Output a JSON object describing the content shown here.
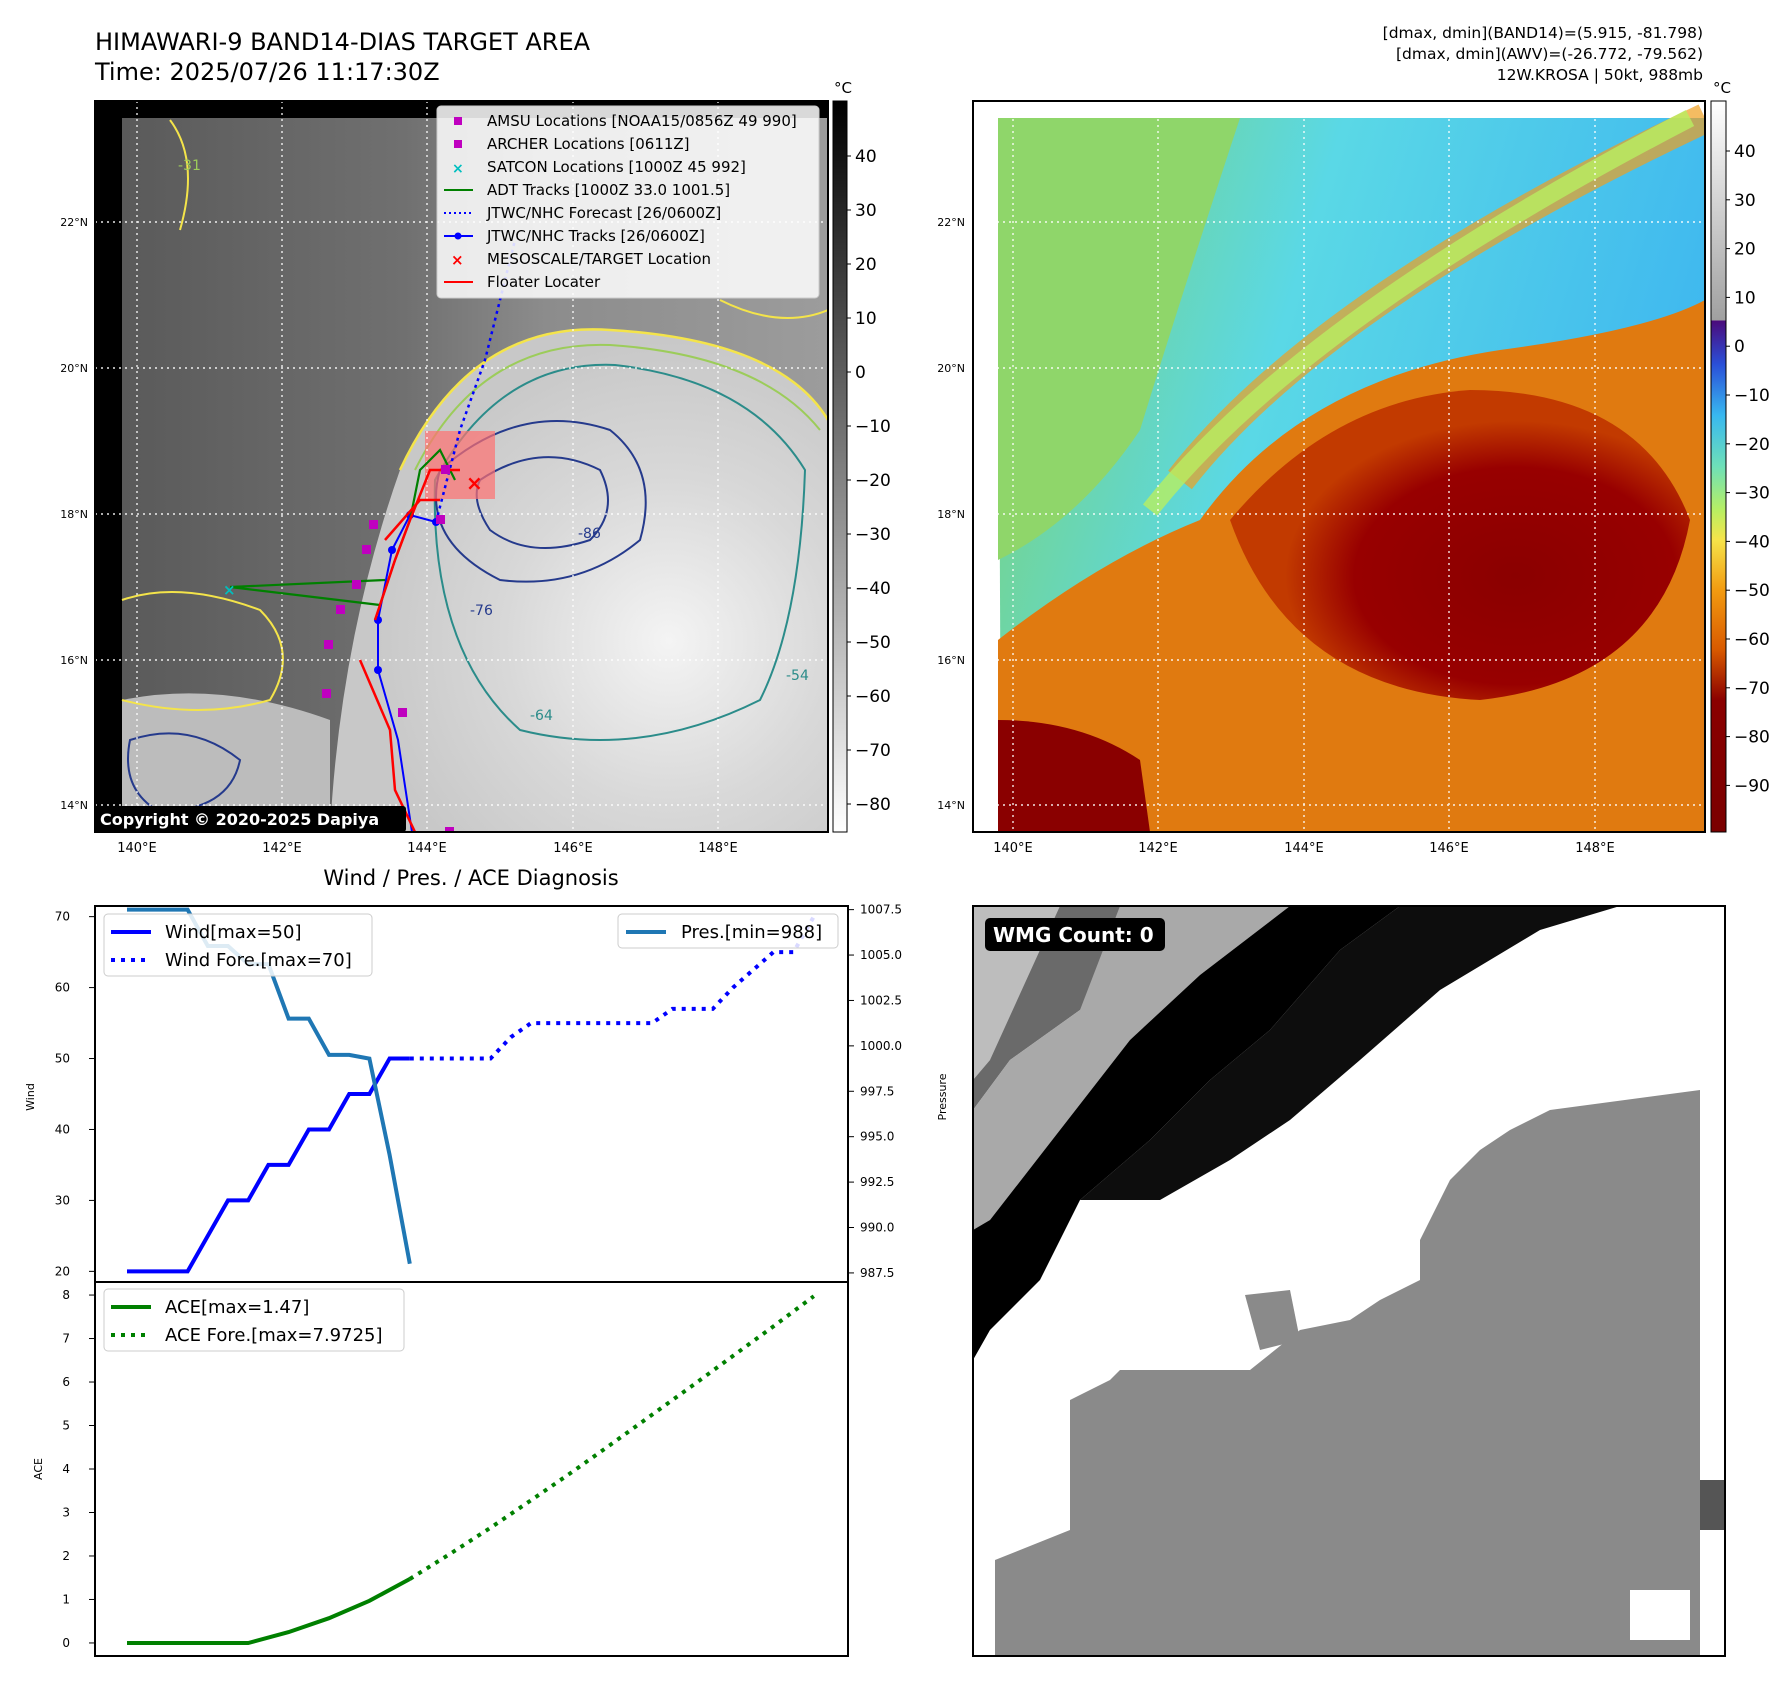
{
  "header": {
    "title": "HIMAWARI-9 BAND14-DIAS TARGET AREA",
    "time": "Time: 2025/07/26 11:17:30Z",
    "stats_band14": "[dmax, dmin](BAND14)=(5.915, -81.798)",
    "stats_awv": "[dmax, dmin](AWV)=(-26.772, -79.562)",
    "storm": "12W.KROSA | 50kt, 988mb"
  },
  "map": {
    "lat_labels": [
      "22°N",
      "20°N",
      "18°N",
      "16°N",
      "14°N"
    ],
    "lon_labels": [
      "140°E",
      "142°E",
      "144°E",
      "146°E",
      "148°E"
    ],
    "copyright": "Copyright © 2020-2025 Dapiya",
    "contour_labels": [
      "-31",
      "-54",
      "-64",
      "-76",
      "-86"
    ],
    "legend": [
      {
        "label": "AMSU Locations [NOAA15/0856Z 49 990]",
        "marker": "square",
        "color": "#bf00bf"
      },
      {
        "label": "ARCHER Locations [0611Z]",
        "marker": "square",
        "color": "#bf00bf"
      },
      {
        "label": "SATCON Locations [1000Z 45 992]",
        "marker": "x",
        "color": "#00bfbf"
      },
      {
        "label": "ADT Tracks [1000Z 33.0 1001.5]",
        "marker": "line",
        "color": "#008000"
      },
      {
        "label": "JTWC/NHC Forecast [26/0600Z]",
        "marker": "dotted",
        "color": "#0000ff"
      },
      {
        "label": "JTWC/NHC Tracks [26/0600Z]",
        "marker": "line-dot",
        "color": "#0000ff"
      },
      {
        "label": "MESOSCALE/TARGET Location",
        "marker": "x",
        "color": "#ff0000"
      },
      {
        "label": "Floater Locater",
        "marker": "line",
        "color": "#ff0000"
      }
    ]
  },
  "colorbar_gray": {
    "unit": "°C",
    "ticks": [
      "40",
      "30",
      "20",
      "10",
      "0",
      "−10",
      "−20",
      "−30",
      "−40",
      "−50",
      "−60",
      "−70",
      "−80"
    ]
  },
  "colorbar_color": {
    "unit": "°C",
    "ticks": [
      "40",
      "30",
      "20",
      "10",
      "0",
      "−10",
      "−20",
      "−30",
      "−40",
      "−50",
      "−60",
      "−70",
      "−80",
      "−90"
    ]
  },
  "chart_data": [
    {
      "type": "line",
      "title": "Wind / Pres. / ACE Diagnosis",
      "ylabel": "Wind",
      "ylim": [
        18.5,
        71.5
      ],
      "yticks": [
        20,
        30,
        40,
        50,
        60,
        70
      ],
      "series": [
        {
          "name": "Wind[max=50]",
          "color": "#0000ff",
          "style": "solid",
          "x": [
            0,
            3,
            5,
            6,
            7,
            8,
            9,
            10,
            11,
            12,
            13,
            14
          ],
          "values": [
            20,
            20,
            30,
            30,
            35,
            35,
            40,
            40,
            45,
            45,
            50,
            50
          ]
        },
        {
          "name": "Wind Fore.[max=70]",
          "color": "#0000ff",
          "style": "dotted",
          "x": [
            14,
            18,
            19,
            20,
            26,
            27,
            29,
            30,
            32,
            33,
            34
          ],
          "values": [
            50,
            50,
            53,
            55,
            55,
            57,
            57,
            60,
            65,
            65,
            70
          ]
        }
      ]
    },
    {
      "type": "line",
      "ylabel": "Pressure",
      "ylim": [
        987,
        1007.7
      ],
      "yticks": [
        "1007.5",
        "1005.0",
        "1002.5",
        "1000.0",
        "997.5",
        "995.0",
        "992.5",
        "990.0",
        "987.5"
      ],
      "series": [
        {
          "name": "Pres.[min=988]",
          "color": "#1f77b4",
          "style": "solid",
          "x": [
            0,
            3,
            4,
            5,
            6,
            7,
            8,
            9,
            10,
            11,
            12,
            13,
            14
          ],
          "values": [
            1007.5,
            1007.5,
            1005.5,
            1005.5,
            1004.5,
            1004.5,
            1001.5,
            1001.5,
            999.5,
            999.5,
            999.3,
            994,
            988
          ]
        }
      ]
    },
    {
      "type": "line",
      "ylabel": "ACE",
      "ylim": [
        -0.3,
        8.3
      ],
      "yticks": [
        0,
        1,
        2,
        3,
        4,
        5,
        6,
        7,
        8
      ],
      "series": [
        {
          "name": "ACE[max=1.47]",
          "color": "#008000",
          "style": "solid",
          "x": [
            0,
            2,
            4,
            6,
            8,
            10,
            12,
            14
          ],
          "values": [
            0,
            0,
            0,
            0,
            0.25,
            0.57,
            0.97,
            1.47
          ]
        },
        {
          "name": "ACE Fore.[max=7.9725]",
          "color": "#008000",
          "style": "dotted",
          "x": [
            14,
            16,
            18,
            20,
            22,
            24,
            26,
            28,
            30,
            32,
            34
          ],
          "values": [
            1.47,
            2.05,
            2.65,
            3.28,
            3.92,
            4.58,
            5.25,
            5.92,
            6.6,
            7.28,
            7.9725
          ]
        }
      ]
    }
  ],
  "wmg": {
    "label": "WMG Count: 0"
  }
}
